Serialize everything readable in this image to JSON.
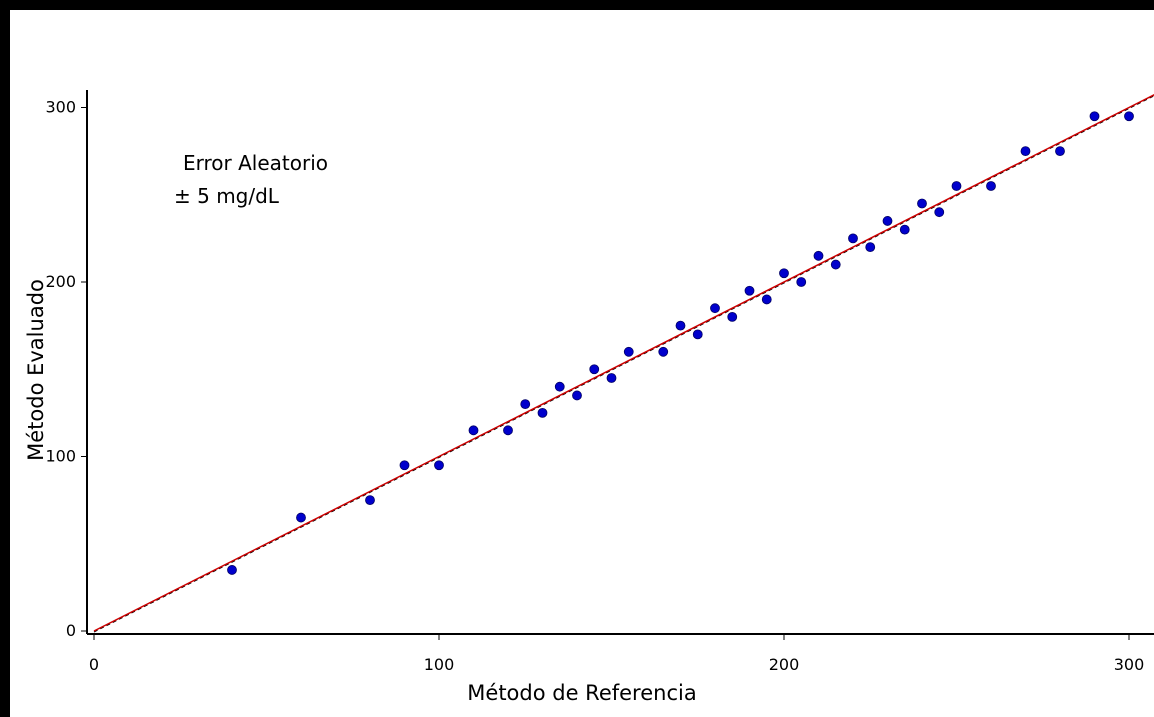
{
  "chart_data": {
    "type": "scatter",
    "xlabel": "Método de Referencia",
    "ylabel": "Método Evaluado",
    "xlim": [
      0,
      305
    ],
    "ylim": [
      -2,
      307
    ],
    "x_ticks": [
      0,
      100,
      200,
      300
    ],
    "y_ticks": [
      0,
      100,
      200,
      300
    ],
    "grid": false,
    "annotation": [
      "Error Aleatorio",
      "± 5 mg/dL"
    ],
    "colors": {
      "points": "#0000cc",
      "regression_line": "#cc0000",
      "identity_line": "#000000"
    },
    "regression_line": {
      "slope": 1.0,
      "intercept": 0
    },
    "identity_line": {
      "slope": 1.0,
      "intercept": 0
    },
    "series": [
      {
        "x": [
          40,
          60,
          80,
          90,
          100,
          110,
          120,
          125,
          130,
          135,
          140,
          145,
          150,
          155,
          165,
          170,
          175,
          180,
          185,
          190,
          195,
          200,
          205,
          210,
          215,
          220,
          225,
          230,
          235,
          240,
          245,
          250,
          260,
          270,
          280,
          290,
          300
        ],
        "y": [
          35,
          65,
          75,
          95,
          95,
          115,
          115,
          130,
          125,
          140,
          135,
          150,
          145,
          160,
          160,
          175,
          170,
          185,
          180,
          195,
          190,
          205,
          200,
          215,
          210,
          225,
          220,
          235,
          230,
          245,
          240,
          255,
          255,
          275,
          275,
          295,
          295
        ]
      }
    ]
  }
}
